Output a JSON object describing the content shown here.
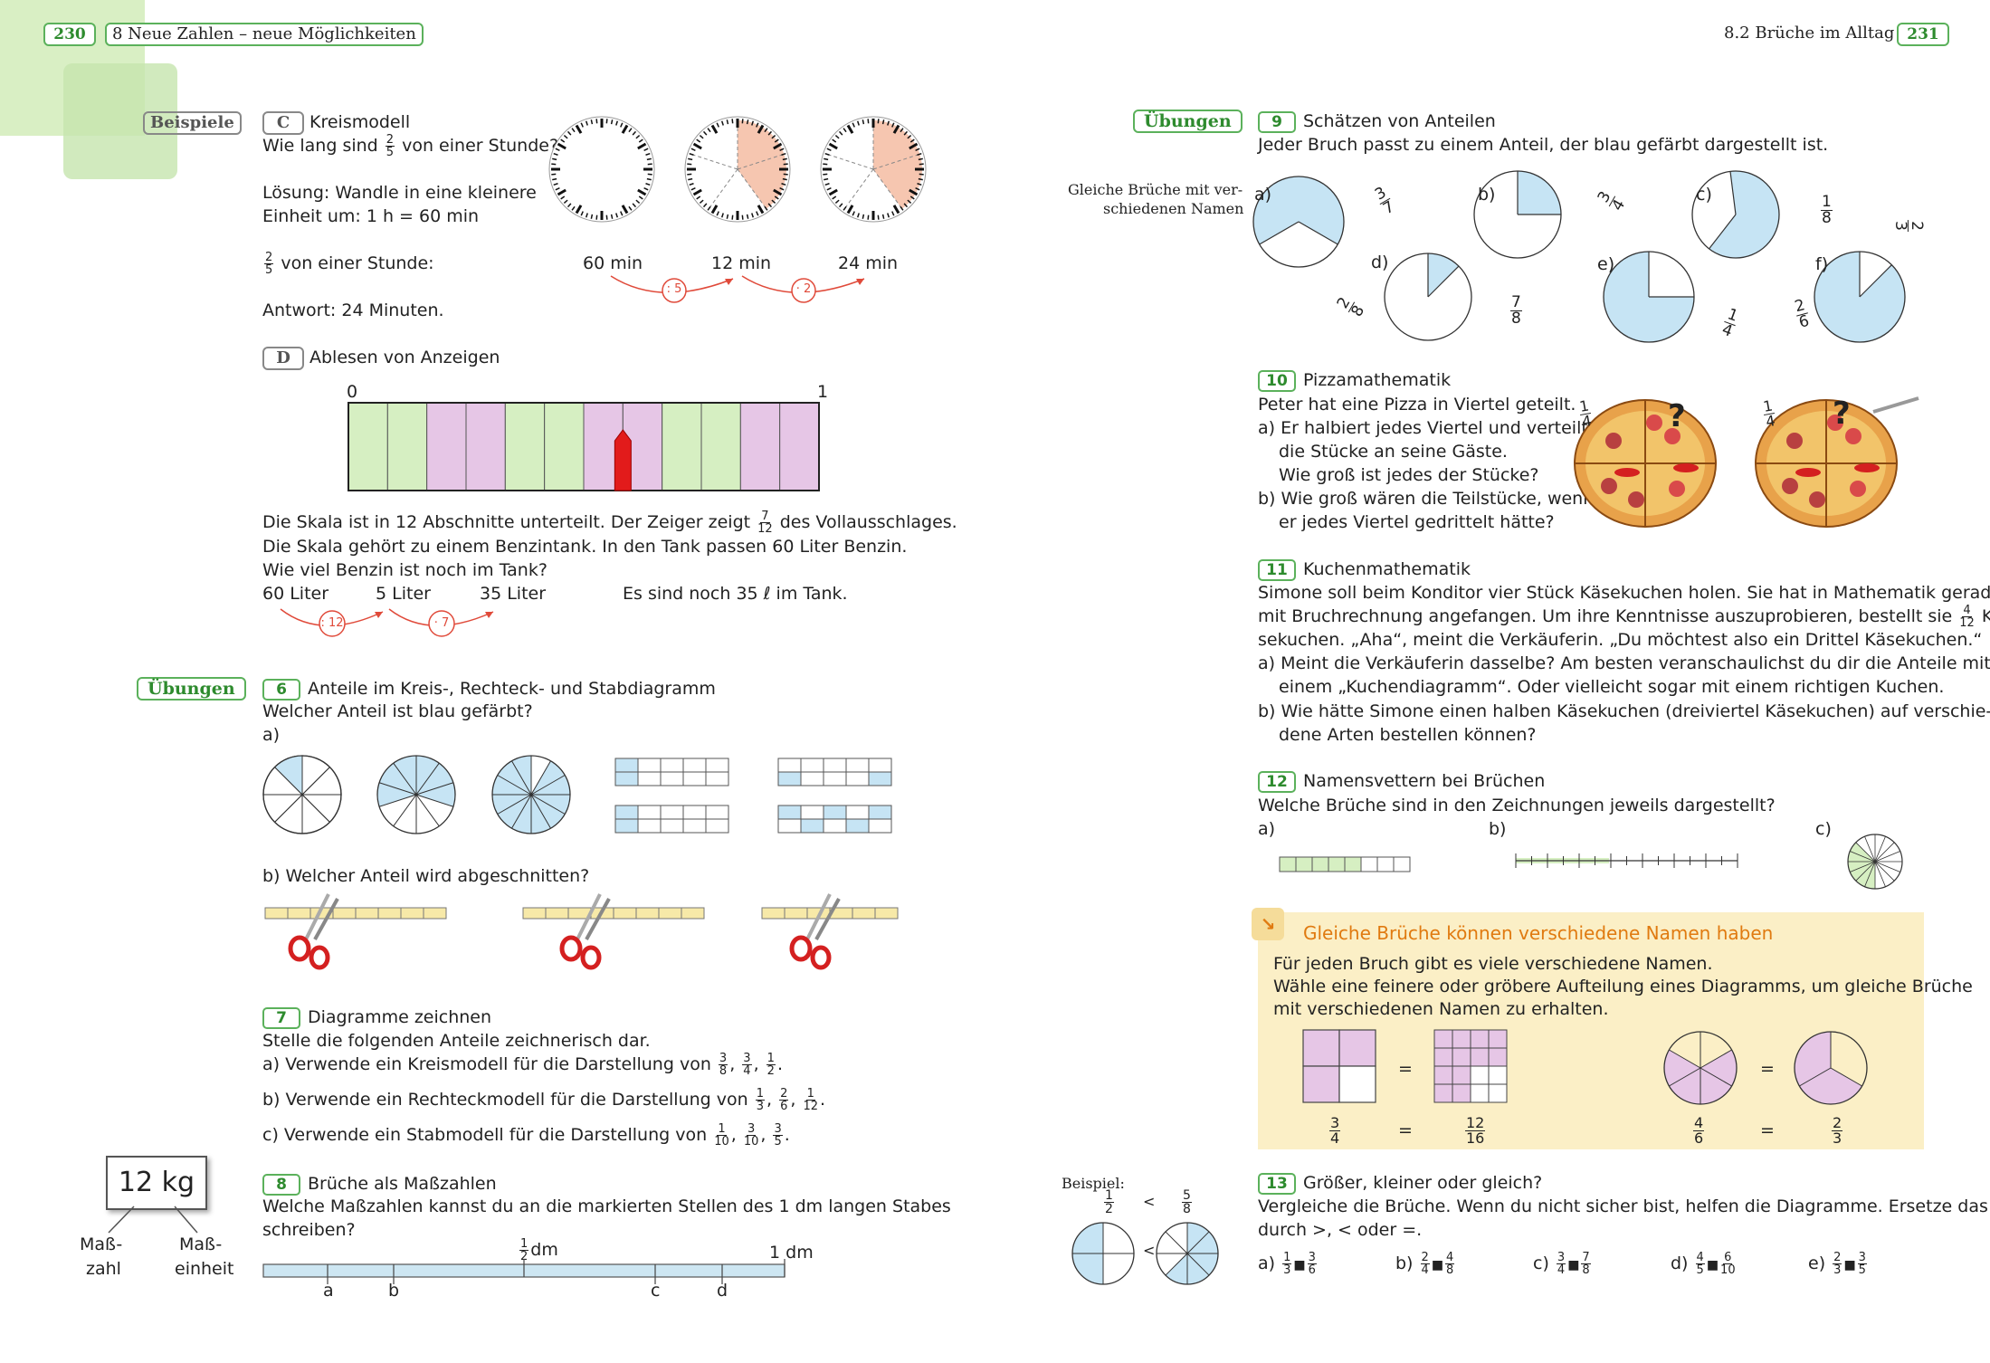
{
  "header": {
    "left_page_number": "230",
    "left_chapter": "8 Neue Zahlen – neue Möglichkeiten",
    "right_chapter": "8.2 Brüche im Alltag",
    "right_page_number": "231"
  },
  "colors": {
    "green": "#5bb15b",
    "light_green": "#d6efc2",
    "pink": "#e6c6e6",
    "blue": "#c6e4f4",
    "salmon": "#f6c6b0",
    "yellow_box": "#fbefc6",
    "orange_title": "#e07a10"
  },
  "left": {
    "beispiele_label": "Beispiele",
    "c": {
      "tag": "C",
      "title": "Kreismodell",
      "question_pre": "Wie lang sind",
      "question_num": "2",
      "question_den": "5",
      "question_post": "von einer Stunde?",
      "solution_1": "Lösung: Wandle in eine kleinere",
      "solution_2": "Einheit um: 1 h = 60 min",
      "step_num": "2",
      "step_den": "5",
      "step_post": "von einer Stunde:",
      "chain": [
        "60 min",
        "12 min",
        "24 min"
      ],
      "ops": [
        ": 5",
        "· 2"
      ],
      "answer": "Antwort: 24 Minuten."
    },
    "d": {
      "tag": "D",
      "title": "Ablesen von Anzeigen",
      "scale_start": "0",
      "scale_end": "1",
      "text_1_pre": "Die Skala ist in 12 Abschnitte unterteilt. Der Zeiger zeigt",
      "text_1_num": "7",
      "text_1_den": "12",
      "text_1_post": "des Vollausschlages.",
      "text_2": "Die Skala gehört zu einem Benzintank. In den Tank passen 60 Liter Benzin.",
      "text_3": "Wie viel Benzin ist noch im Tank?",
      "chain": [
        "60 Liter",
        "5 Liter",
        "35 Liter"
      ],
      "ops": [
        ": 12",
        "· 7"
      ],
      "answer": "Es sind noch 35 ℓ im Tank."
    },
    "uebungen_label": "Übungen",
    "ex6": {
      "num": "6",
      "title": "Anteile im Kreis-, Rechteck- und Stabdiagramm",
      "question": "Welcher Anteil ist blau gefärbt?",
      "part_a": "a)",
      "part_b": "b) Welcher Anteil wird abgeschnitten?"
    },
    "ex7": {
      "num": "7",
      "title": "Diagramme zeichnen",
      "intro": "Stelle die folgenden Anteile zeichnerisch dar.",
      "a": "a) Verwende ein Kreismodell für die Darstellung von",
      "a_fracs": [
        [
          "3",
          "8"
        ],
        [
          "3",
          "4"
        ],
        [
          "1",
          "2"
        ]
      ],
      "b": "b) Verwende ein Rechteckmodell für die Darstellung von",
      "b_fracs": [
        [
          "1",
          "3"
        ],
        [
          "2",
          "6"
        ],
        [
          "1",
          "12"
        ]
      ],
      "c": "c) Verwende ein Stabmodell für die Darstellung von",
      "c_fracs": [
        [
          "1",
          "10"
        ],
        [
          "3",
          "10"
        ],
        [
          "3",
          "5"
        ]
      ]
    },
    "ex8": {
      "num": "8",
      "title": "Brüche als Maßzahlen",
      "text_1": "Welche Maßzahlen kannst du an die markierten Stellen des 1 dm langen Stabes",
      "text_2": "schreiben?",
      "half_num": "1",
      "half_den": "2",
      "half_unit": "dm",
      "end_label": "1 dm",
      "marks": [
        "a",
        "b",
        "c",
        "d"
      ]
    },
    "weight": {
      "value": "12 kg",
      "label_left_1": "Maß-",
      "label_left_2": "zahl",
      "label_right_1": "Maß-",
      "label_right_2": "einheit"
    }
  },
  "right": {
    "uebungen_label": "Übungen",
    "margin_note_1": "Gleiche Brüche mit ver-",
    "margin_note_2": "schiedenen Namen",
    "ex9": {
      "num": "9",
      "title": "Schätzen von Anteilen",
      "text": "Jeder Bruch passt zu einem Anteil, der blau gefärbt dargestellt ist.",
      "labels": [
        "a)",
        "b)",
        "c)",
        "d)",
        "e)",
        "f)"
      ],
      "fracs": [
        [
          "3",
          "7"
        ],
        [
          "3",
          "4"
        ],
        [
          "1",
          "8"
        ],
        [
          "2",
          "3"
        ],
        [
          "2",
          "8"
        ],
        [
          "7",
          "8"
        ],
        [
          "1",
          "4"
        ],
        [
          "2",
          "6"
        ]
      ]
    },
    "ex10": {
      "num": "10",
      "title": "Pizzamathematik",
      "t1": "Peter hat eine Pizza in Viertel geteilt.",
      "t2": "a) Er halbiert jedes Viertel und verteilt",
      "t3": "die Stücke an seine Gäste.",
      "t4": "Wie groß ist jedes der Stücke?",
      "t5": "b) Wie groß wären die Teilstücke, wenn",
      "t6": "er jedes Viertel gedrittelt hätte?",
      "frac_num": "1",
      "frac_den": "4",
      "q": "?"
    },
    "ex11": {
      "num": "11",
      "title": "Kuchenmathematik",
      "t1": "Simone soll beim Konditor vier Stück Käsekuchen holen. Sie hat in Mathematik gerade",
      "t2_pre": "mit Bruchrechnung angefangen. Um ihre Kenntnisse auszuprobieren, bestellt sie",
      "t2_num": "4",
      "t2_den": "12",
      "t2_post": "Kä-",
      "t3": "sekuchen. „Aha“, meint die Verkäuferin. „Du möchtest also ein Drittel Käsekuchen.“",
      "t4": "a) Meint die Verkäuferin dasselbe? Am besten veranschaulichst du dir die Anteile mit",
      "t5": "einem „Kuchendiagramm“. Oder vielleicht sogar mit einem richtigen Kuchen.",
      "t6": "b) Wie hätte Simone einen halben Käsekuchen (dreiviertel Käsekuchen) auf verschie-",
      "t7": "dene Arten bestellen können?"
    },
    "ex12": {
      "num": "12",
      "title": "Namensvettern bei Brüchen",
      "text": "Welche Brüche sind in den Zeichnungen jeweils dargestellt?",
      "labels": [
        "a)",
        "b)",
        "c)"
      ]
    },
    "infobox": {
      "title": "Gleiche Brüche können verschiedene Namen haben",
      "t1": "Für jeden Bruch gibt es viele verschiedene Namen.",
      "t2": "Wähle eine feinere oder gröbere Aufteilung eines Diagramms, um gleiche Brüche",
      "t3": "mit verschiedenen Namen zu erhalten.",
      "eq": "=",
      "fracs": [
        [
          "3",
          "4"
        ],
        [
          "12",
          "16"
        ],
        [
          "4",
          "6"
        ],
        [
          "2",
          "3"
        ]
      ]
    },
    "ex13": {
      "num": "13",
      "title": "Größer, kleiner oder gleich?",
      "t1": "Vergleiche die Brüche. Wenn du nicht sicher bist, helfen die Diagramme. Ersetze das ■",
      "t2": "durch >, < oder =.",
      "example_label": "Beispiel:",
      "example_fracs": [
        [
          "1",
          "2"
        ],
        [
          "5",
          "8"
        ]
      ],
      "lt": "<",
      "items": [
        {
          "label": "a)",
          "l": [
            "1",
            "3"
          ],
          "r": [
            "3",
            "6"
          ]
        },
        {
          "label": "b)",
          "l": [
            "2",
            "4"
          ],
          "r": [
            "4",
            "8"
          ]
        },
        {
          "label": "c)",
          "l": [
            "3",
            "4"
          ],
          "r": [
            "7",
            "8"
          ]
        },
        {
          "label": "d)",
          "l": [
            "4",
            "5"
          ],
          "r": [
            "6",
            "10"
          ]
        },
        {
          "label": "e)",
          "l": [
            "2",
            "3"
          ],
          "r": [
            "3",
            "5"
          ]
        }
      ],
      "box": "■"
    }
  }
}
